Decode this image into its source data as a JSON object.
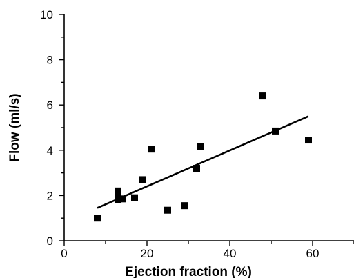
{
  "chart_data": {
    "type": "scatter",
    "title": "",
    "xlabel": "Ejection fraction (%)",
    "ylabel": "Flow (ml/s)",
    "xlim": [
      0,
      70
    ],
    "ylim": [
      0,
      10
    ],
    "x_ticks": [
      0,
      20,
      40,
      60
    ],
    "x_minor_ticks": [
      10,
      30,
      50,
      70
    ],
    "y_ticks": [
      0,
      2,
      4,
      6,
      8,
      10
    ],
    "y_minor_ticks": [
      1,
      3,
      5,
      7,
      9
    ],
    "grid": false,
    "legend": "none",
    "marker": "square",
    "points": [
      {
        "x": 8,
        "y": 1.0
      },
      {
        "x": 13,
        "y": 2.2
      },
      {
        "x": 13,
        "y": 2.05
      },
      {
        "x": 13,
        "y": 1.8
      },
      {
        "x": 14,
        "y": 1.85
      },
      {
        "x": 17,
        "y": 1.9
      },
      {
        "x": 19,
        "y": 2.7
      },
      {
        "x": 21,
        "y": 4.05
      },
      {
        "x": 25,
        "y": 1.35
      },
      {
        "x": 29,
        "y": 1.55
      },
      {
        "x": 32,
        "y": 3.2
      },
      {
        "x": 33,
        "y": 4.15
      },
      {
        "x": 48,
        "y": 6.4
      },
      {
        "x": 51,
        "y": 4.85
      },
      {
        "x": 59,
        "y": 4.45
      }
    ],
    "fit_line": {
      "x": [
        8,
        59
      ],
      "y": [
        1.45,
        5.5
      ]
    }
  }
}
